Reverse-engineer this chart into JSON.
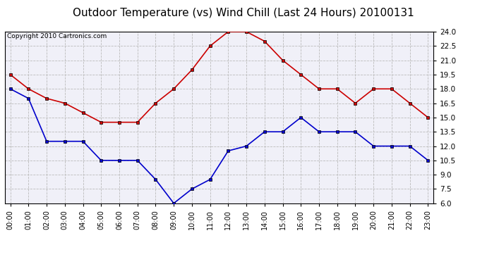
{
  "title": "Outdoor Temperature (vs) Wind Chill (Last 24 Hours) 20100131",
  "copyright": "Copyright 2010 Cartronics.com",
  "hours": [
    "00:00",
    "01:00",
    "02:00",
    "03:00",
    "04:00",
    "05:00",
    "06:00",
    "07:00",
    "08:00",
    "09:00",
    "10:00",
    "11:00",
    "12:00",
    "13:00",
    "14:00",
    "15:00",
    "16:00",
    "17:00",
    "18:00",
    "19:00",
    "20:00",
    "21:00",
    "22:00",
    "23:00"
  ],
  "temp_red": [
    19.5,
    18.0,
    17.0,
    16.5,
    15.5,
    14.5,
    14.5,
    14.5,
    16.5,
    18.0,
    20.0,
    22.5,
    24.0,
    24.0,
    23.0,
    21.0,
    19.5,
    18.0,
    18.0,
    16.5,
    18.0,
    18.0,
    16.5,
    15.0
  ],
  "wind_chill_blue": [
    18.0,
    17.0,
    12.5,
    12.5,
    12.5,
    10.5,
    10.5,
    10.5,
    8.5,
    6.0,
    7.5,
    8.5,
    11.5,
    12.0,
    13.5,
    13.5,
    15.0,
    13.5,
    13.5,
    13.5,
    12.0,
    12.0,
    12.0,
    10.5
  ],
  "red_color": "#cc0000",
  "blue_color": "#0000cc",
  "bg_color": "#ffffff",
  "plot_bg_color": "#f0f0f8",
  "grid_color": "#bbbbbb",
  "ylim_min": 6.0,
  "ylim_max": 24.0,
  "ytick_step": 1.5,
  "title_fontsize": 11,
  "copyright_fontsize": 6.5,
  "linewidth": 1.2,
  "markersize": 3.5
}
